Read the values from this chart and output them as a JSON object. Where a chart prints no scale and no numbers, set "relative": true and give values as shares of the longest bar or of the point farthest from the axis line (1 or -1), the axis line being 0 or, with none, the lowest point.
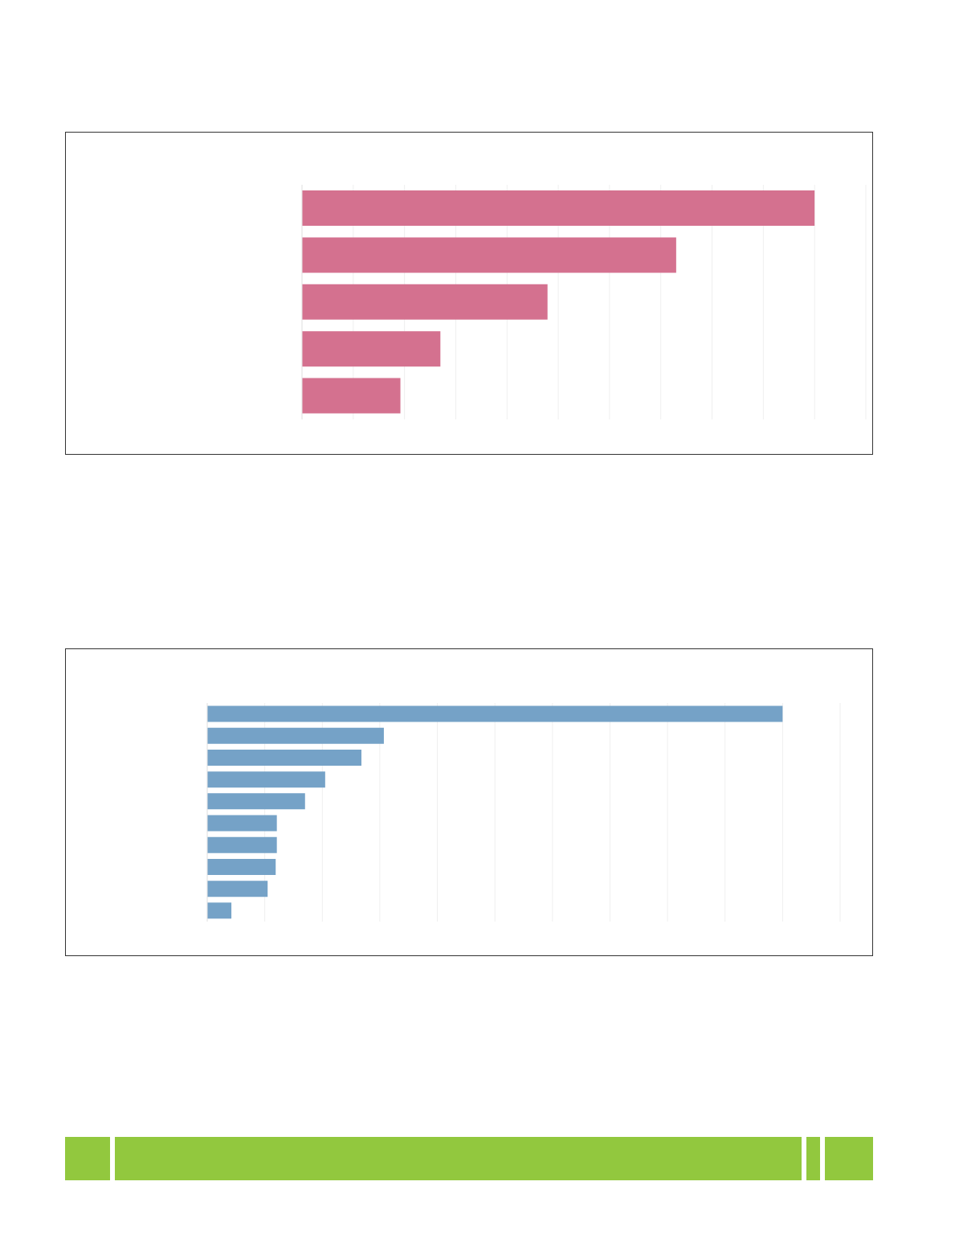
{
  "chart_data": [
    {
      "type": "bar",
      "orientation": "horizontal",
      "relative": true,
      "categories": [
        null,
        null,
        null,
        null,
        null
      ],
      "values": [
        1,
        0.73,
        0.479,
        0.27,
        0.192
      ],
      "color": "#d4718f",
      "grid": "x"
    },
    {
      "type": "bar",
      "orientation": "horizontal",
      "relative": true,
      "categories": [
        null,
        null,
        null,
        null,
        null,
        null,
        null,
        null,
        null,
        null
      ],
      "values": [
        1,
        0.307,
        0.268,
        0.205,
        0.17,
        0.121,
        0.121,
        0.119,
        0.105,
        0.042
      ],
      "color": "#75a2c7",
      "grid": "x"
    }
  ]
}
